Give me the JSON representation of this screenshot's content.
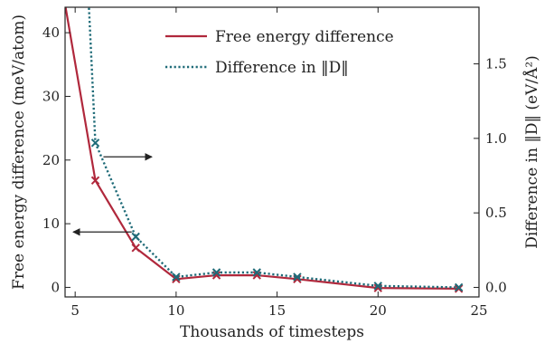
{
  "chart_data": {
    "type": "line",
    "xlabel": "Thousands of timesteps",
    "ylabel_left": "Free energy difference (meV/atom)",
    "ylabel_right": "Difference in ‖D‖ (eV/Å²)",
    "xlim": [
      4.5,
      25
    ],
    "ylim_left": [
      -1.5,
      44
    ],
    "ylim_right": [
      -0.064,
      1.88
    ],
    "xticks": [
      5,
      10,
      15,
      20,
      25
    ],
    "yticks_left": [
      0,
      10,
      20,
      30,
      40
    ],
    "yticks_right": [
      "0.0",
      "0.5",
      "1.0",
      "1.5"
    ],
    "yticks_right_values": [
      0.0,
      0.5,
      1.0,
      1.5
    ],
    "grid": false,
    "legend_position": "top-center",
    "series": [
      {
        "name": "Free energy difference",
        "axis": "left",
        "color": "#b0283c",
        "style": "solid",
        "marker": "x",
        "x": [
          4.2,
          6,
          8,
          10,
          12,
          14,
          16,
          20,
          24
        ],
        "y": [
          50,
          16.8,
          6.2,
          1.3,
          1.9,
          1.9,
          1.3,
          -0.1,
          -0.2
        ]
      },
      {
        "name": "Difference in ‖D‖",
        "axis": "right",
        "color": "#1f6b78",
        "style": "dotted",
        "marker": "x",
        "x": [
          5.5,
          6,
          8,
          10,
          12,
          14,
          16,
          20,
          24
        ],
        "y": [
          2.4,
          0.97,
          0.34,
          0.07,
          0.1,
          0.1,
          0.07,
          0.01,
          0.0
        ]
      }
    ],
    "annotations": [
      {
        "type": "arrow",
        "direction": "right",
        "target_axis": "right",
        "from": [
          6.4,
          20.5
        ],
        "to": [
          8.8,
          20.5
        ]
      },
      {
        "type": "arrow",
        "direction": "left",
        "target_axis": "left",
        "from": [
          7.8,
          8.7
        ],
        "to": [
          4.9,
          8.7
        ]
      }
    ]
  }
}
